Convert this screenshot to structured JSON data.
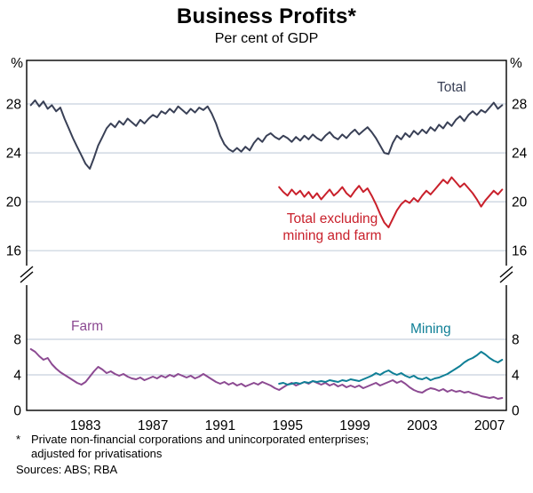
{
  "title": "Business Profits*",
  "subtitle": "Per cent of GDP",
  "axis": {
    "percent_symbol": "%"
  },
  "labels": {
    "total": "Total",
    "excl_line1": "Total excluding",
    "excl_line2": "mining and farm",
    "farm": "Farm",
    "mining": "Mining"
  },
  "footnote": {
    "marker": "*",
    "line1": "Private non-financial corporations and unincorporated enterprises;",
    "line2": "adjusted for privatisations",
    "sources": "Sources: ABS; RBA"
  },
  "colors": {
    "total": "#394056",
    "excl": "#c9202b",
    "farm": "#8c4a92",
    "mining": "#0f7f96",
    "grid": "#c7d0dd",
    "frame": "#000000"
  },
  "chart_data": {
    "type": "line",
    "title": "Business Profits*",
    "subtitle": "Per cent of GDP",
    "y_unit": "%",
    "axis_break": true,
    "grid": true,
    "xlim": [
      1979.5,
      2008
    ],
    "x_ticks": [
      1983,
      1987,
      1991,
      1995,
      1999,
      2003,
      2007
    ],
    "panels": [
      {
        "id": "top",
        "ylim": [
          14.56,
          31.56
        ],
        "gridlines": [
          16,
          20,
          24,
          28
        ],
        "yticks": [
          {
            "v": 28,
            "t": "28"
          },
          {
            "v": 24,
            "t": "24"
          },
          {
            "v": 20,
            "t": "20"
          },
          {
            "v": 16,
            "t": "16"
          }
        ]
      },
      {
        "id": "bottom",
        "ylim": [
          0,
          14.4
        ],
        "gridlines": [
          4,
          8
        ],
        "yticks": [
          {
            "v": 8,
            "t": "8"
          },
          {
            "v": 4,
            "t": "4"
          },
          {
            "v": 0,
            "t": "0"
          }
        ]
      }
    ],
    "series": [
      {
        "name": "Total",
        "panel": "top",
        "color_key": "total",
        "start_year": 1979.75,
        "step": 0.25,
        "values": [
          27.9,
          28.3,
          27.8,
          28.2,
          27.6,
          27.9,
          27.4,
          27.7,
          26.8,
          26.0,
          25.2,
          24.5,
          23.8,
          23.1,
          22.7,
          23.6,
          24.6,
          25.3,
          26.0,
          26.4,
          26.1,
          26.6,
          26.3,
          26.8,
          26.5,
          26.2,
          26.7,
          26.4,
          26.8,
          27.1,
          26.9,
          27.4,
          27.2,
          27.6,
          27.3,
          27.8,
          27.5,
          27.2,
          27.6,
          27.3,
          27.7,
          27.5,
          27.8,
          27.2,
          26.4,
          25.4,
          24.7,
          24.3,
          24.1,
          24.4,
          24.1,
          24.5,
          24.2,
          24.8,
          25.2,
          24.9,
          25.4,
          25.6,
          25.3,
          25.1,
          25.4,
          25.2,
          24.9,
          25.3,
          25.0,
          25.4,
          25.1,
          25.5,
          25.2,
          25.0,
          25.4,
          25.7,
          25.3,
          25.1,
          25.5,
          25.2,
          25.6,
          25.9,
          25.5,
          25.8,
          26.1,
          25.7,
          25.2,
          24.6,
          24.0,
          23.9,
          24.8,
          25.4,
          25.1,
          25.6,
          25.3,
          25.8,
          25.5,
          25.9,
          25.6,
          26.1,
          25.8,
          26.3,
          26.0,
          26.5,
          26.2,
          26.7,
          27.0,
          26.6,
          27.1,
          27.4,
          27.1,
          27.5,
          27.3,
          27.7,
          28.1,
          27.6,
          27.9
        ]
      },
      {
        "name": "Total excluding mining and farm",
        "panel": "top",
        "color_key": "excl",
        "start_year": 1994.5,
        "step": 0.25,
        "values": [
          21.2,
          20.8,
          20.5,
          21.0,
          20.6,
          20.9,
          20.4,
          20.8,
          20.3,
          20.7,
          20.2,
          20.6,
          21.0,
          20.5,
          20.8,
          21.2,
          20.7,
          20.4,
          20.9,
          21.3,
          20.8,
          21.1,
          20.5,
          19.8,
          19.0,
          18.3,
          17.9,
          18.6,
          19.3,
          19.8,
          20.1,
          19.9,
          20.3,
          20.0,
          20.5,
          20.9,
          20.6,
          21.0,
          21.4,
          21.8,
          21.5,
          22.0,
          21.6,
          21.2,
          21.5,
          21.1,
          20.7,
          20.2,
          19.6,
          20.1,
          20.5,
          20.9,
          20.6,
          21.0
        ]
      },
      {
        "name": "Farm",
        "panel": "bottom",
        "color_key": "farm",
        "start_year": 1979.75,
        "step": 0.25,
        "values": [
          6.9,
          6.6,
          6.1,
          5.7,
          5.9,
          5.2,
          4.7,
          4.3,
          4.0,
          3.7,
          3.4,
          3.1,
          2.9,
          3.2,
          3.8,
          4.4,
          4.9,
          4.6,
          4.2,
          4.4,
          4.1,
          3.9,
          4.1,
          3.8,
          3.6,
          3.5,
          3.7,
          3.4,
          3.6,
          3.8,
          3.6,
          3.9,
          3.7,
          4.0,
          3.8,
          4.1,
          3.9,
          3.7,
          3.9,
          3.6,
          3.8,
          4.1,
          3.8,
          3.5,
          3.2,
          3.0,
          3.2,
          2.9,
          3.1,
          2.8,
          3.0,
          2.7,
          2.9,
          3.1,
          2.9,
          3.2,
          3.0,
          2.8,
          2.5,
          2.3,
          2.6,
          2.9,
          3.1,
          2.8,
          3.0,
          3.2,
          3.0,
          3.3,
          3.1,
          2.9,
          3.1,
          2.8,
          3.0,
          2.7,
          2.9,
          2.6,
          2.8,
          2.6,
          2.8,
          2.5,
          2.7,
          2.9,
          3.1,
          2.8,
          3.0,
          3.2,
          3.4,
          3.1,
          3.3,
          3.0,
          2.6,
          2.3,
          2.1,
          2.0,
          2.3,
          2.5,
          2.4,
          2.2,
          2.4,
          2.1,
          2.3,
          2.1,
          2.2,
          2.0,
          2.1,
          1.9,
          1.8,
          1.6,
          1.5,
          1.4,
          1.5,
          1.3,
          1.4
        ]
      },
      {
        "name": "Mining",
        "panel": "bottom",
        "color_key": "mining",
        "start_year": 1994.5,
        "step": 0.25,
        "values": [
          3.0,
          3.1,
          2.9,
          3.0,
          3.1,
          3.0,
          3.2,
          3.1,
          3.3,
          3.2,
          3.3,
          3.2,
          3.4,
          3.3,
          3.2,
          3.4,
          3.3,
          3.5,
          3.4,
          3.3,
          3.5,
          3.7,
          3.9,
          4.2,
          4.0,
          4.3,
          4.5,
          4.2,
          4.0,
          4.2,
          3.9,
          3.7,
          3.9,
          3.6,
          3.5,
          3.7,
          3.4,
          3.6,
          3.7,
          3.9,
          4.1,
          4.4,
          4.7,
          5.0,
          5.4,
          5.7,
          5.9,
          6.2,
          6.6,
          6.3,
          5.9,
          5.6,
          5.4,
          5.7
        ]
      }
    ]
  }
}
